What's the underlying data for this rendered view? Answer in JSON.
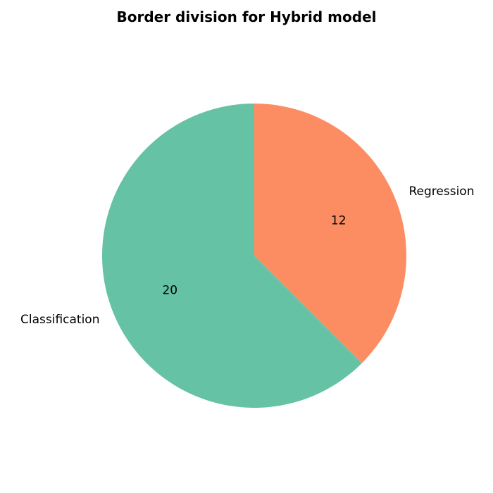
{
  "chart_data": {
    "type": "pie",
    "title": "Border division for Hybrid model",
    "labels": [
      "Classification",
      "Regression"
    ],
    "values": [
      20,
      12
    ],
    "colors": [
      "#66c2a5",
      "#fc8d62"
    ],
    "start_angle_deg": 90,
    "direction": "counterclockwise",
    "value_labels_shown": true
  }
}
